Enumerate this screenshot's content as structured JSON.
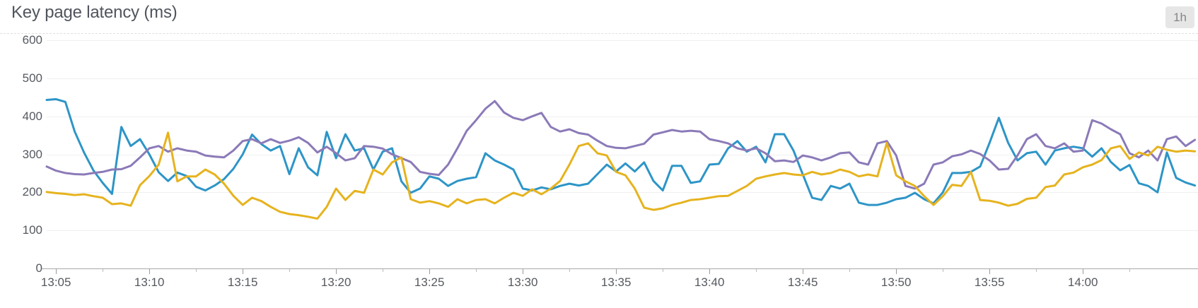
{
  "header": {
    "title": "Key page latency (ms)",
    "time_range_badge": "1h"
  },
  "colors": {
    "background": "#ffffff",
    "title_text": "#50555d",
    "tick_text": "#55595f",
    "grid": "#efefef",
    "axis": "#a9a9a9",
    "tick_major": "#9a9a9a",
    "tick_minor": "#bdbdbd",
    "divider": "#e0e0e0",
    "badge_bg": "#e6e6e6",
    "badge_text": "#868686"
  },
  "chart_data": {
    "type": "line",
    "title": "Key page latency (ms)",
    "unit": "ms",
    "legend": "none",
    "grid": "horizontal",
    "window": "1h",
    "y_axis": {
      "ticks": [
        0,
        100,
        200,
        300,
        400,
        500,
        600
      ],
      "ylim": [
        0,
        600
      ]
    },
    "x_axis": {
      "tick_labels": [
        "13:05",
        "13:10",
        "13:15",
        "13:20",
        "13:25",
        "13:30",
        "13:35",
        "13:40",
        "13:45",
        "13:50",
        "13:55",
        "14:00"
      ],
      "tick_minutes": [
        5,
        10,
        15,
        20,
        25,
        30,
        35,
        40,
        45,
        50,
        55,
        60
      ],
      "minor_tick_step_min": 2.5,
      "start_min": 4.5,
      "step_min": 0.5
    },
    "series": [
      {
        "name": "blue",
        "color": "#2d95c7",
        "values": [
          443,
          445,
          438,
          360,
          305,
          258,
          225,
          196,
          372,
          322,
          340,
          300,
          253,
          230,
          252,
          243,
          215,
          205,
          218,
          235,
          262,
          300,
          352,
          327,
          310,
          322,
          248,
          316,
          266,
          245,
          359,
          290,
          353,
          310,
          316,
          260,
          307,
          316,
          229,
          199,
          210,
          242,
          236,
          217,
          230,
          236,
          240,
          303,
          284,
          273,
          260,
          210,
          205,
          213,
          208,
          217,
          223,
          218,
          223,
          248,
          273,
          255,
          276,
          255,
          279,
          230,
          205,
          270,
          270,
          225,
          229,
          273,
          275,
          316,
          335,
          307,
          320,
          279,
          353,
          353,
          310,
          247,
          186,
          180,
          217,
          210,
          223,
          173,
          167,
          167,
          173,
          182,
          186,
          199,
          182,
          171,
          200,
          251,
          251,
          254,
          268,
          330,
          396,
          330,
          284,
          303,
          307,
          273,
          310,
          316,
          320,
          316,
          294,
          316,
          280,
          258,
          272,
          224,
          217,
          200,
          305,
          238,
          226,
          218
        ]
      },
      {
        "name": "purple",
        "color": "#8b7ab8",
        "values": [
          268,
          257,
          251,
          248,
          247,
          251,
          254,
          260,
          261,
          270,
          292,
          316,
          322,
          307,
          316,
          310,
          307,
          297,
          294,
          292,
          310,
          335,
          340,
          329,
          340,
          330,
          336,
          345,
          330,
          305,
          320,
          303,
          284,
          290,
          322,
          320,
          315,
          300,
          290,
          280,
          254,
          249,
          246,
          273,
          316,
          362,
          390,
          420,
          440,
          410,
          396,
          390,
          400,
          409,
          372,
          360,
          366,
          356,
          352,
          336,
          322,
          317,
          316,
          322,
          328,
          352,
          358,
          364,
          360,
          362,
          360,
          340,
          335,
          329,
          316,
          310,
          316,
          303,
          282,
          284,
          280,
          297,
          292,
          284,
          292,
          303,
          305,
          279,
          273,
          329,
          335,
          297,
          217,
          210,
          223,
          273,
          279,
          295,
          300,
          310,
          301,
          284,
          260,
          262,
          297,
          340,
          353,
          322,
          316,
          329,
          307,
          310,
          390,
          381,
          366,
          353,
          303,
          292,
          310,
          284,
          340,
          347,
          322,
          338
        ]
      },
      {
        "name": "gold",
        "color": "#e6b31e",
        "values": [
          201,
          198,
          196,
          193,
          195,
          190,
          186,
          169,
          171,
          165,
          219,
          243,
          273,
          357,
          229,
          242,
          242,
          260,
          247,
          223,
          191,
          167,
          186,
          177,
          162,
          149,
          143,
          140,
          136,
          131,
          162,
          210,
          180,
          204,
          199,
          260,
          247,
          279,
          292,
          182,
          173,
          177,
          171,
          162,
          182,
          171,
          180,
          182,
          171,
          186,
          199,
          191,
          208,
          195,
          210,
          230,
          273,
          322,
          329,
          303,
          297,
          254,
          245,
          210,
          160,
          154,
          158,
          167,
          173,
          180,
          182,
          186,
          190,
          191,
          204,
          217,
          236,
          242,
          247,
          251,
          247,
          245,
          254,
          247,
          251,
          260,
          254,
          242,
          247,
          242,
          330,
          245,
          229,
          217,
          190,
          167,
          190,
          220,
          217,
          254,
          180,
          178,
          173,
          165,
          170,
          183,
          186,
          214,
          218,
          247,
          252,
          266,
          273,
          285,
          316,
          322,
          288,
          305,
          297,
          320,
          312,
          307,
          310,
          308
        ]
      }
    ]
  }
}
